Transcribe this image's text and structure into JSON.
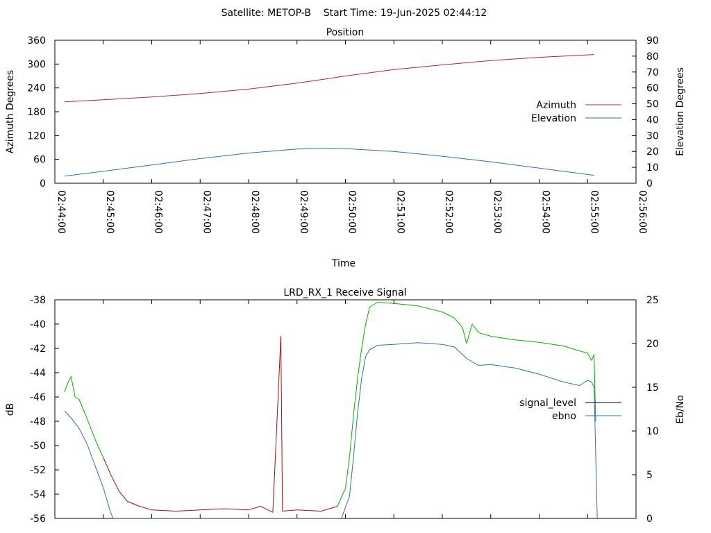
{
  "header": {
    "title": "Satellite: METOP-B    Start Time: 19-Jun-2025 02:44:12"
  },
  "colors": {
    "azimuth": "#a52a2a",
    "elevation": "#336ea6",
    "signal_level": "#000000",
    "ebno": "#336ea6",
    "signal_trace_low": "#a01010",
    "signal_trace_high": "#00b000",
    "axis": "#000000",
    "background": "#ffffff"
  },
  "chart_data": [
    {
      "type": "line",
      "title": "Position",
      "xlabel": "Time",
      "ylabel": "Azimuth Degrees",
      "y2label": "Elevation Degrees",
      "xlim": [
        "02:44:00",
        "02:56:00"
      ],
      "ylim": [
        0,
        360
      ],
      "y2lim": [
        0,
        90
      ],
      "x_ticks": [
        "02:44:00",
        "02:45:00",
        "02:46:00",
        "02:47:00",
        "02:48:00",
        "02:49:00",
        "02:50:00",
        "02:51:00",
        "02:52:00",
        "02:53:00",
        "02:54:00",
        "02:55:00",
        "02:56:00"
      ],
      "y_ticks": [
        0,
        60,
        120,
        180,
        240,
        300,
        360
      ],
      "y2_ticks": [
        0,
        10,
        20,
        30,
        40,
        50,
        60,
        70,
        80,
        90
      ],
      "legend_position": "right",
      "grid": false,
      "series": [
        {
          "name": "Azimuth",
          "axis": "left",
          "points": [
            [
              "02:44:12",
              205
            ],
            [
              "02:45:00",
              210
            ],
            [
              "02:46:00",
              217
            ],
            [
              "02:47:00",
              226
            ],
            [
              "02:48:00",
              237
            ],
            [
              "02:49:00",
              252
            ],
            [
              "02:49:30",
              261
            ],
            [
              "02:50:00",
              270
            ],
            [
              "02:51:00",
              286
            ],
            [
              "02:52:00",
              298
            ],
            [
              "02:53:00",
              309
            ],
            [
              "02:54:00",
              317
            ],
            [
              "02:55:08",
              324
            ]
          ]
        },
        {
          "name": "Elevation",
          "axis": "right",
          "points": [
            [
              "02:44:12",
              4.5
            ],
            [
              "02:45:00",
              7.5
            ],
            [
              "02:46:00",
              11.5
            ],
            [
              "02:47:00",
              15.5
            ],
            [
              "02:48:00",
              19
            ],
            [
              "02:49:00",
              21.5
            ],
            [
              "02:49:40",
              21.9
            ],
            [
              "02:50:00",
              21.8
            ],
            [
              "02:51:00",
              20
            ],
            [
              "02:52:00",
              17
            ],
            [
              "02:53:00",
              13.5
            ],
            [
              "02:54:00",
              9.5
            ],
            [
              "02:55:08",
              5
            ]
          ]
        }
      ]
    },
    {
      "type": "line",
      "title": "LRD_RX_1 Receive Signal",
      "xlabel": "",
      "ylabel": "dB",
      "y2label": "Eb/No",
      "xlim": [
        "02:44:00",
        "02:56:00"
      ],
      "ylim": [
        -56,
        -38
      ],
      "y2lim": [
        0,
        25
      ],
      "y_ticks": [
        -38,
        -40,
        -42,
        -44,
        -46,
        -48,
        -50,
        -52,
        -54,
        -56
      ],
      "y2_ticks": [
        0,
        5,
        10,
        15,
        20,
        25
      ],
      "legend_position": "right",
      "grid": false,
      "series": [
        {
          "name": "signal_level",
          "axis": "left",
          "points": [
            [
              "02:44:12",
              -45.6
            ],
            [
              "02:44:15",
              -45.0
            ],
            [
              "02:44:20",
              -44.3
            ],
            [
              "02:44:25",
              -46.0
            ],
            [
              "02:44:30",
              -46.2
            ],
            [
              "02:44:40",
              -47.8
            ],
            [
              "02:44:50",
              -49.5
            ],
            [
              "02:45:00",
              -51.0
            ],
            [
              "02:45:10",
              -52.5
            ],
            [
              "02:45:20",
              -53.8
            ],
            [
              "02:45:30",
              -54.6
            ],
            [
              "02:45:45",
              -55.0
            ],
            [
              "02:46:00",
              -55.3
            ],
            [
              "02:46:30",
              -55.4
            ],
            [
              "02:47:00",
              -55.3
            ],
            [
              "02:47:30",
              -55.2
            ],
            [
              "02:48:00",
              -55.3
            ],
            [
              "02:48:15",
              -55.0
            ],
            [
              "02:48:30",
              -55.5
            ],
            [
              "02:48:40",
              -41.0
            ],
            [
              "02:48:42",
              -55.4
            ],
            [
              "02:49:00",
              -55.3
            ],
            [
              "02:49:30",
              -55.4
            ],
            [
              "02:49:50",
              -55.0
            ],
            [
              "02:50:00",
              -53.5
            ],
            [
              "02:50:05",
              -51.0
            ],
            [
              "02:50:10",
              -47.5
            ],
            [
              "02:50:15",
              -44.5
            ],
            [
              "02:50:20",
              -42.0
            ],
            [
              "02:50:25",
              -40.0
            ],
            [
              "02:50:30",
              -38.6
            ],
            [
              "02:50:40",
              -38.2
            ],
            [
              "02:51:00",
              -38.3
            ],
            [
              "02:51:30",
              -38.5
            ],
            [
              "02:52:00",
              -39.0
            ],
            [
              "02:52:15",
              -39.5
            ],
            [
              "02:52:25",
              -40.3
            ],
            [
              "02:52:30",
              -41.6
            ],
            [
              "02:52:37",
              -40.0
            ],
            [
              "02:52:45",
              -40.7
            ],
            [
              "02:53:00",
              -41.0
            ],
            [
              "02:53:30",
              -41.3
            ],
            [
              "02:54:00",
              -41.5
            ],
            [
              "02:54:30",
              -41.8
            ],
            [
              "02:55:00",
              -42.4
            ],
            [
              "02:55:05",
              -43.0
            ],
            [
              "02:55:08",
              -42.5
            ],
            [
              "02:55:10",
              -48.0
            ]
          ]
        },
        {
          "name": "ebno",
          "axis": "right",
          "points": [
            [
              "02:44:12",
              12.3
            ],
            [
              "02:44:20",
              11.5
            ],
            [
              "02:44:30",
              10.3
            ],
            [
              "02:44:40",
              8.5
            ],
            [
              "02:44:50",
              6.0
            ],
            [
              "02:45:00",
              3.5
            ],
            [
              "02:45:08",
              1.0
            ],
            [
              "02:45:12",
              0
            ],
            [
              "02:49:55",
              0
            ],
            [
              "02:50:05",
              2.5
            ],
            [
              "02:50:10",
              7.0
            ],
            [
              "02:50:15",
              12.0
            ],
            [
              "02:50:20",
              16.0
            ],
            [
              "02:50:25",
              18.5
            ],
            [
              "02:50:30",
              19.3
            ],
            [
              "02:50:40",
              19.8
            ],
            [
              "02:51:00",
              19.9
            ],
            [
              "02:51:30",
              20.1
            ],
            [
              "02:52:00",
              19.9
            ],
            [
              "02:52:15",
              19.6
            ],
            [
              "02:52:30",
              18.3
            ],
            [
              "02:52:45",
              17.5
            ],
            [
              "02:53:00",
              17.6
            ],
            [
              "02:53:30",
              17.2
            ],
            [
              "02:54:00",
              16.5
            ],
            [
              "02:54:30",
              15.6
            ],
            [
              "02:54:50",
              15.2
            ],
            [
              "02:55:00",
              15.8
            ],
            [
              "02:55:05",
              15.6
            ],
            [
              "02:55:08",
              15.0
            ],
            [
              "02:55:10",
              7.5
            ],
            [
              "02:55:12",
              0
            ]
          ]
        }
      ]
    }
  ]
}
